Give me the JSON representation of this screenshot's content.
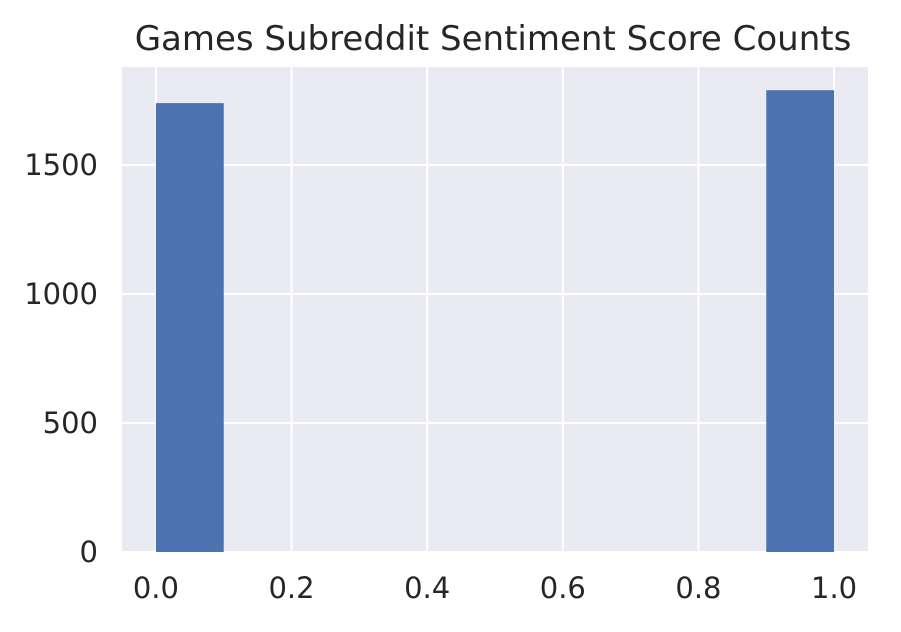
{
  "chart_data": {
    "type": "bar",
    "title": "Games Subreddit Sentiment Score Counts",
    "xlabel": "",
    "ylabel": "",
    "xlim": [
      -0.05,
      1.05
    ],
    "ylim": [
      0,
      1880
    ],
    "xticks": [
      "0.0",
      "0.2",
      "0.4",
      "0.6",
      "0.8",
      "1.0"
    ],
    "xtick_values": [
      0.0,
      0.2,
      0.4,
      0.6,
      0.8,
      1.0
    ],
    "yticks": [
      "0",
      "500",
      "1000",
      "1500"
    ],
    "ytick_values": [
      0,
      500,
      1000,
      1500
    ],
    "grid": true,
    "bins": [
      {
        "start": 0.0,
        "end": 0.1,
        "count": 1740
      },
      {
        "start": 0.1,
        "end": 0.2,
        "count": 0
      },
      {
        "start": 0.2,
        "end": 0.3,
        "count": 0
      },
      {
        "start": 0.3,
        "end": 0.4,
        "count": 0
      },
      {
        "start": 0.4,
        "end": 0.5,
        "count": 0
      },
      {
        "start": 0.5,
        "end": 0.6,
        "count": 0
      },
      {
        "start": 0.6,
        "end": 0.7,
        "count": 0
      },
      {
        "start": 0.7,
        "end": 0.8,
        "count": 0
      },
      {
        "start": 0.8,
        "end": 0.9,
        "count": 0
      },
      {
        "start": 0.9,
        "end": 1.0,
        "count": 1790
      }
    ],
    "colors": {
      "bar": "#4C72B0",
      "plot_background": "#EAEAF2",
      "grid": "#FFFFFF",
      "text": "#262626"
    }
  }
}
